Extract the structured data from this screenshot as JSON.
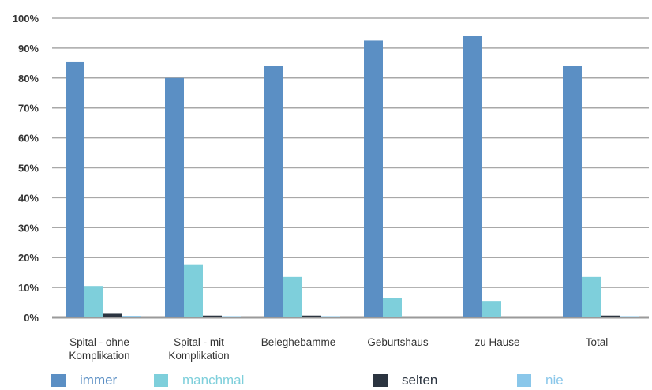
{
  "chart_data": {
    "type": "bar",
    "categories": [
      [
        "Spital - ohne",
        "Komplikation"
      ],
      [
        "Spital - mit",
        "Komplikation"
      ],
      [
        "Beleghebamme"
      ],
      [
        "Geburtshaus"
      ],
      [
        "zu Hause"
      ],
      [
        "Total"
      ]
    ],
    "series": [
      {
        "name": "immer",
        "color": "#5b8fc4",
        "label_color": "#5b8fc4",
        "values": [
          85.5,
          80,
          84,
          92.5,
          94,
          84
        ]
      },
      {
        "name": "manchmal",
        "color": "#7ecfdb",
        "label_color": "#7ecfdb",
        "values": [
          10.5,
          17.5,
          13.5,
          6.5,
          5.5,
          13.5
        ]
      },
      {
        "name": "selten",
        "color": "#2b3440",
        "label_color": "#2b3440",
        "values": [
          1.2,
          0.6,
          0.6,
          0,
          0,
          0.6
        ]
      },
      {
        "name": "nie",
        "color": "#8ac7ea",
        "label_color": "#8ac7ea",
        "values": [
          0.5,
          0.4,
          0.4,
          0,
          0,
          0.4
        ]
      }
    ],
    "ylim": [
      0,
      100
    ],
    "yticks": [
      "0%",
      "10%",
      "20%",
      "30%",
      "40%",
      "50%",
      "60%",
      "70%",
      "80%",
      "90%",
      "100%"
    ],
    "grid": true,
    "legend": "bottom",
    "title": "",
    "xlabel": "",
    "ylabel": ""
  }
}
